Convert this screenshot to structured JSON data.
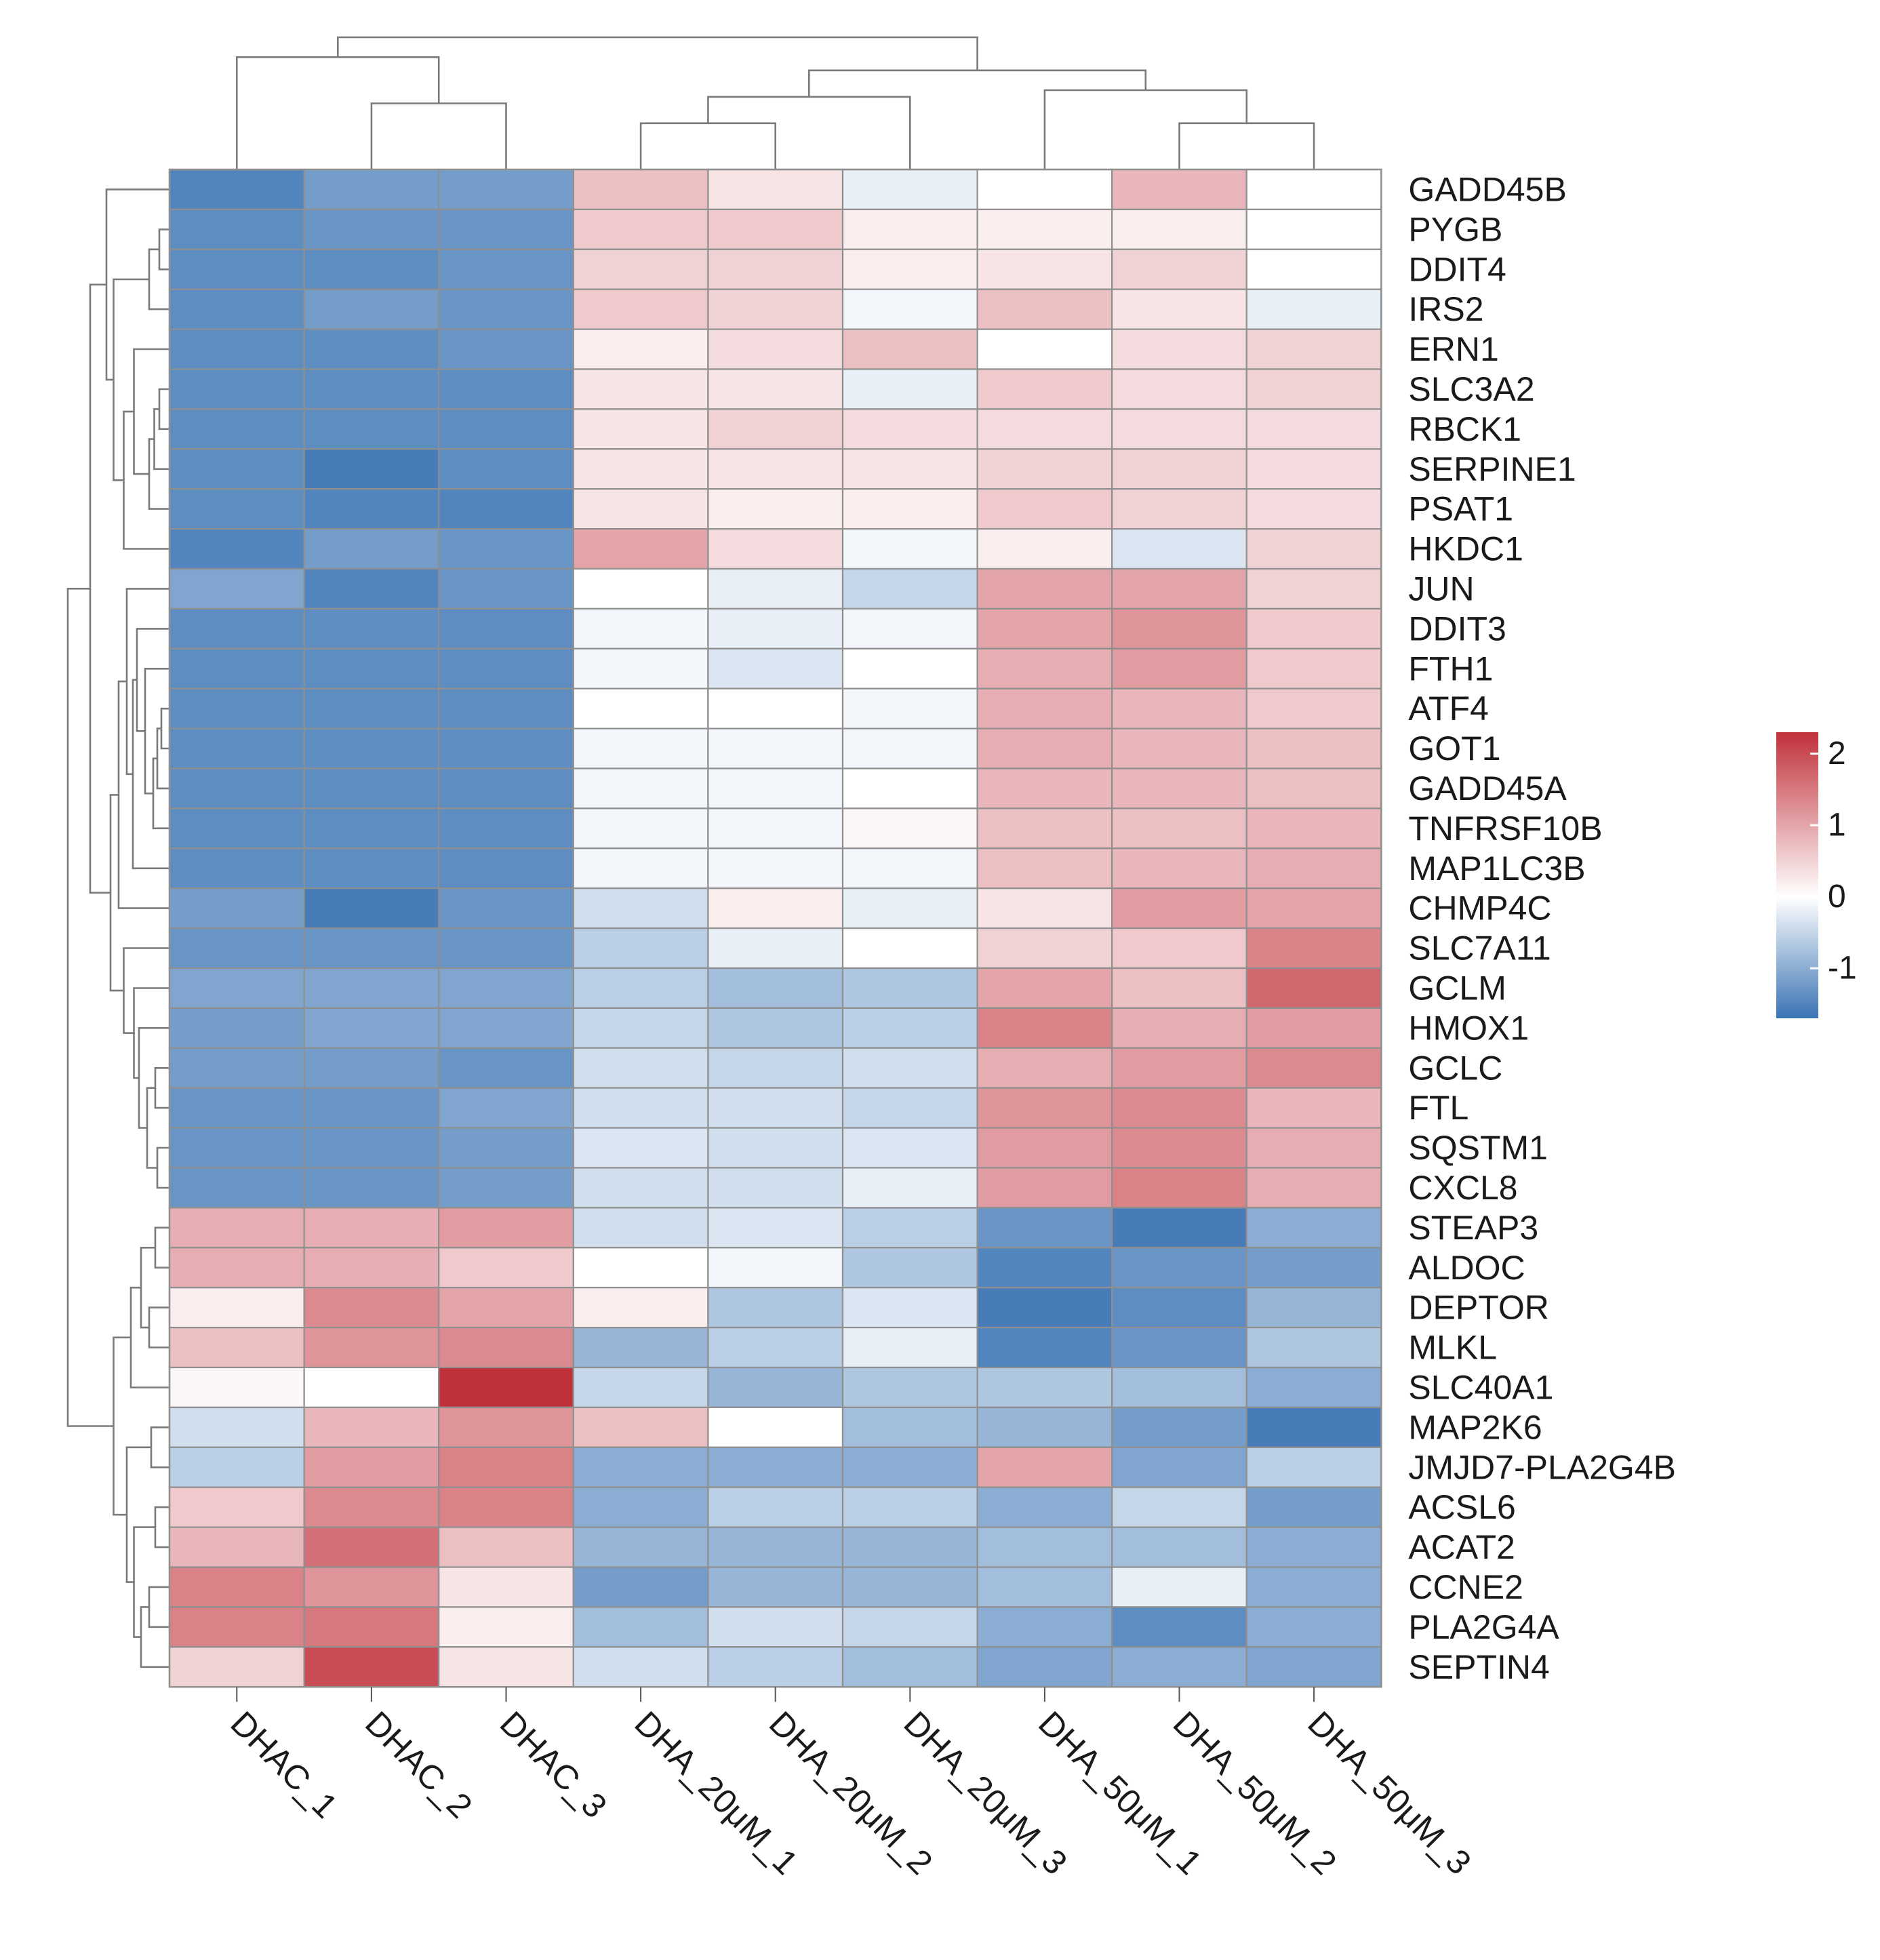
{
  "chart_data": {
    "type": "heatmap",
    "title": "",
    "columns": [
      "DHAC_1",
      "DHAC_2",
      "DHAC_3",
      "DHA_20μM_1",
      "DHA_20μM_2",
      "DHA_20μM_3",
      "DHA_50μM_1",
      "DHA_50μM_2",
      "DHA_50μM_3"
    ],
    "rows": [
      "GADD45B",
      "PYGB",
      "DDIT4",
      "IRS2",
      "ERN1",
      "SLC3A2",
      "RBCK1",
      "SERPINE1",
      "PSAT1",
      "HKDC1",
      "JUN",
      "DDIT3",
      "FTH1",
      "ATF4",
      "GOT1",
      "GADD45A",
      "TNFRSF10B",
      "MAP1LC3B",
      "CHMP4C",
      "SLC7A11",
      "GCLM",
      "HMOX1",
      "GCLC",
      "FTL",
      "SQSTM1",
      "CXCL8",
      "STEAP3",
      "ALDOC",
      "DEPTOR",
      "MLKL",
      "SLC40A1",
      "MAP2K6",
      "JMJD7-PLA2G4B",
      "ACSL6",
      "ACAT2",
      "CCNE2",
      "PLA2G4A",
      "SEPTIN4"
    ],
    "values": [
      [
        -1.5,
        -1.2,
        -1.2,
        0.7,
        0.3,
        -0.2,
        0.0,
        0.8,
        0.0
      ],
      [
        -1.4,
        -1.3,
        -1.3,
        0.6,
        0.6,
        0.2,
        0.2,
        0.2,
        0.0
      ],
      [
        -1.4,
        -1.4,
        -1.3,
        0.5,
        0.5,
        0.2,
        0.3,
        0.5,
        0.0
      ],
      [
        -1.4,
        -1.2,
        -1.3,
        0.6,
        0.5,
        -0.1,
        0.7,
        0.3,
        -0.2
      ],
      [
        -1.4,
        -1.4,
        -1.3,
        0.2,
        0.4,
        0.7,
        0.0,
        0.4,
        0.5
      ],
      [
        -1.4,
        -1.4,
        -1.4,
        0.3,
        0.3,
        -0.2,
        0.6,
        0.4,
        0.5
      ],
      [
        -1.4,
        -1.4,
        -1.4,
        0.3,
        0.5,
        0.4,
        0.4,
        0.4,
        0.4
      ],
      [
        -1.4,
        -1.6,
        -1.4,
        0.3,
        0.3,
        0.3,
        0.5,
        0.5,
        0.4
      ],
      [
        -1.4,
        -1.5,
        -1.5,
        0.3,
        0.2,
        0.2,
        0.6,
        0.5,
        0.4
      ],
      [
        -1.5,
        -1.2,
        -1.3,
        1.0,
        0.4,
        -0.1,
        0.2,
        -0.3,
        0.5
      ],
      [
        -1.1,
        -1.5,
        -1.3,
        0.0,
        -0.2,
        -0.5,
        1.0,
        1.0,
        0.5
      ],
      [
        -1.4,
        -1.4,
        -1.4,
        -0.1,
        -0.2,
        -0.1,
        1.0,
        1.2,
        0.6
      ],
      [
        -1.4,
        -1.4,
        -1.4,
        -0.1,
        -0.3,
        0.0,
        0.9,
        1.1,
        0.6
      ],
      [
        -1.4,
        -1.4,
        -1.4,
        0.0,
        0.0,
        -0.1,
        0.9,
        0.8,
        0.6
      ],
      [
        -1.4,
        -1.4,
        -1.4,
        -0.1,
        -0.1,
        -0.1,
        0.9,
        0.8,
        0.7
      ],
      [
        -1.4,
        -1.4,
        -1.4,
        -0.1,
        -0.1,
        0.0,
        0.8,
        0.8,
        0.7
      ],
      [
        -1.4,
        -1.4,
        -1.4,
        -0.1,
        -0.1,
        0.1,
        0.7,
        0.7,
        0.8
      ],
      [
        -1.4,
        -1.4,
        -1.4,
        -0.1,
        -0.1,
        -0.1,
        0.7,
        0.8,
        0.9
      ],
      [
        -1.2,
        -1.6,
        -1.3,
        -0.4,
        0.2,
        -0.2,
        0.3,
        1.1,
        1.0
      ],
      [
        -1.3,
        -1.3,
        -1.3,
        -0.6,
        -0.2,
        0.0,
        0.5,
        0.6,
        1.4
      ],
      [
        -1.1,
        -1.1,
        -1.1,
        -0.6,
        -0.8,
        -0.7,
        1.0,
        0.7,
        1.7
      ],
      [
        -1.2,
        -1.1,
        -1.1,
        -0.5,
        -0.7,
        -0.6,
        1.4,
        0.9,
        1.1
      ],
      [
        -1.2,
        -1.2,
        -1.3,
        -0.4,
        -0.5,
        -0.4,
        0.9,
        1.1,
        1.3
      ],
      [
        -1.3,
        -1.3,
        -1.1,
        -0.4,
        -0.4,
        -0.5,
        1.2,
        1.3,
        0.8
      ],
      [
        -1.3,
        -1.3,
        -1.2,
        -0.3,
        -0.4,
        -0.3,
        1.1,
        1.3,
        0.9
      ],
      [
        -1.3,
        -1.3,
        -1.2,
        -0.4,
        -0.4,
        -0.2,
        1.1,
        1.4,
        0.9
      ],
      [
        0.9,
        0.9,
        1.1,
        -0.4,
        -0.3,
        -0.6,
        -1.3,
        -1.6,
        -1.0
      ],
      [
        0.9,
        0.9,
        0.6,
        0.0,
        -0.1,
        -0.7,
        -1.5,
        -1.3,
        -1.2
      ],
      [
        0.2,
        1.3,
        1.0,
        0.2,
        -0.7,
        -0.3,
        -1.6,
        -1.4,
        -0.9
      ],
      [
        0.7,
        1.2,
        1.3,
        -0.9,
        -0.6,
        -0.2,
        -1.5,
        -1.3,
        -0.7
      ],
      [
        0.1,
        0.0,
        2.3,
        -0.5,
        -0.9,
        -0.7,
        -0.7,
        -0.8,
        -1.0
      ],
      [
        -0.4,
        0.8,
        1.2,
        0.7,
        0.0,
        -0.8,
        -0.9,
        -1.2,
        -1.6
      ],
      [
        -0.6,
        1.1,
        1.4,
        -1.0,
        -1.0,
        -1.0,
        1.0,
        -1.1,
        -0.6
      ],
      [
        0.6,
        1.3,
        1.4,
        -1.0,
        -0.6,
        -0.6,
        -1.0,
        -0.5,
        -1.2
      ],
      [
        0.8,
        1.6,
        0.7,
        -0.9,
        -0.9,
        -0.9,
        -0.8,
        -0.8,
        -1.0
      ],
      [
        1.4,
        1.2,
        0.3,
        -1.2,
        -0.9,
        -0.9,
        -0.8,
        -0.2,
        -1.0
      ],
      [
        1.4,
        1.5,
        0.2,
        -0.8,
        -0.4,
        -0.5,
        -1.0,
        -1.4,
        -1.0
      ],
      [
        0.5,
        2.0,
        0.3,
        -0.4,
        -0.6,
        -0.8,
        -1.1,
        -1.0,
        -1.1
      ]
    ],
    "color_scale": {
      "min": -1.7,
      "max": 2.3,
      "low_color": "#3b74b4",
      "mid_color": "#ffffff",
      "high_color": "#c0313b"
    },
    "legend": {
      "ticks": [
        2,
        1,
        0,
        -1
      ],
      "tick_labels": [
        "2",
        "1",
        "0",
        "-1"
      ],
      "placement": "right"
    },
    "column_dendrogram": {
      "leaf_order": [
        "DHAC_1",
        "DHAC_2",
        "DHAC_3",
        "DHA_20μM_1",
        "DHA_20μM_2",
        "DHA_20μM_3",
        "DHA_50μM_1",
        "DHA_50μM_2",
        "DHA_50μM_3"
      ],
      "merges": [
        [
          1,
          2,
          0.5
        ],
        [
          0,
          1,
          0.85
        ],
        [
          3,
          4,
          0.35
        ],
        [
          3,
          5,
          0.55
        ],
        [
          7,
          8,
          0.35
        ],
        [
          6,
          7,
          0.6
        ],
        [
          3,
          6,
          0.75
        ],
        [
          0,
          3,
          1.0
        ]
      ]
    },
    "row_dendrogram": {
      "leaf_order": "same as rows",
      "merges": [
        [
          1,
          2,
          0.1
        ],
        [
          1,
          3,
          0.2
        ],
        [
          5,
          6,
          0.1
        ],
        [
          5,
          7,
          0.15
        ],
        [
          5,
          8,
          0.2
        ],
        [
          4,
          5,
          0.35
        ],
        [
          4,
          9,
          0.45
        ],
        [
          1,
          4,
          0.55
        ],
        [
          0,
          1,
          0.62
        ],
        [
          13,
          14,
          0.08
        ],
        [
          13,
          15,
          0.12
        ],
        [
          13,
          16,
          0.16
        ],
        [
          12,
          13,
          0.24
        ],
        [
          11,
          12,
          0.32
        ],
        [
          11,
          17,
          0.36
        ],
        [
          10,
          11,
          0.42
        ],
        [
          10,
          18,
          0.5
        ],
        [
          22,
          23,
          0.14
        ],
        [
          24,
          25,
          0.12
        ],
        [
          22,
          24,
          0.22
        ],
        [
          21,
          22,
          0.3
        ],
        [
          20,
          21,
          0.35
        ],
        [
          19,
          20,
          0.45
        ],
        [
          10,
          19,
          0.58
        ],
        [
          0,
          10,
          0.78
        ],
        [
          26,
          27,
          0.14
        ],
        [
          28,
          29,
          0.2
        ],
        [
          26,
          28,
          0.28
        ],
        [
          26,
          30,
          0.38
        ],
        [
          31,
          32,
          0.18
        ],
        [
          33,
          34,
          0.14
        ],
        [
          35,
          36,
          0.2
        ],
        [
          35,
          37,
          0.28
        ],
        [
          33,
          35,
          0.35
        ],
        [
          31,
          33,
          0.42
        ],
        [
          26,
          31,
          0.55
        ],
        [
          0,
          26,
          1.0
        ]
      ]
    }
  }
}
